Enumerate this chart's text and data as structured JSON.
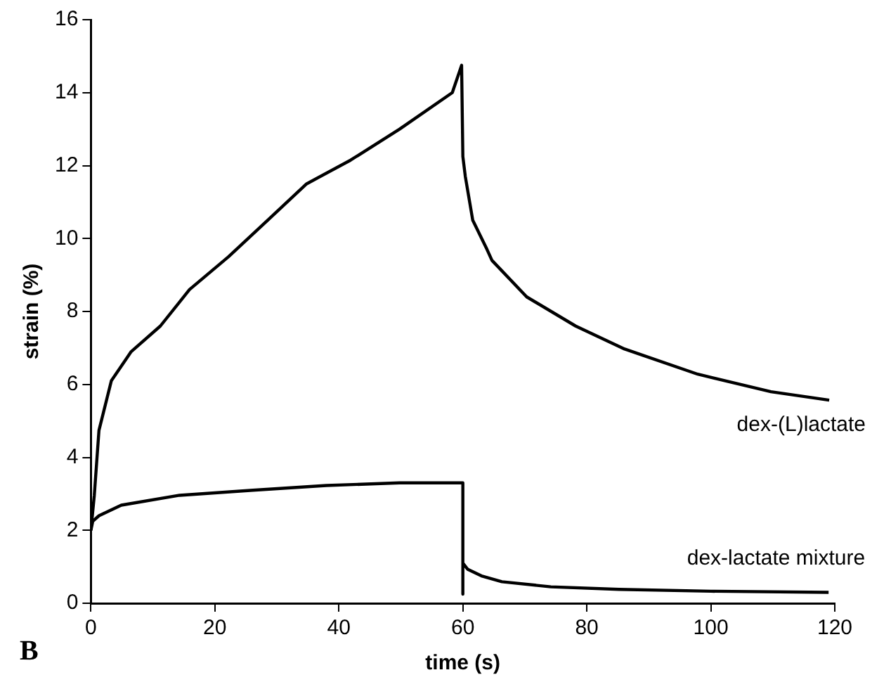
{
  "chart_data": {
    "type": "line",
    "xlabel": "time (s)",
    "ylabel": "strain (%)",
    "annotations": [
      "B"
    ],
    "xlim": [
      0,
      120
    ],
    "xticks": [
      0,
      20,
      40,
      60,
      80,
      100,
      120
    ],
    "ylim": [
      0,
      16
    ],
    "yticks": [
      0,
      2,
      4,
      6,
      8,
      10,
      12,
      14,
      16
    ],
    "grid": false,
    "legend": false,
    "marker": "none",
    "line_style": "solid",
    "series": [
      {
        "name": "dex-(L)lactate",
        "color": "#000000",
        "x": [
          0,
          0.55,
          1.3,
          3.3,
          6.5,
          11.2,
          15.9,
          22.2,
          28.5,
          34.8,
          41.9,
          49.8,
          58.3,
          59.8,
          60,
          60.4,
          61.6,
          63.9,
          64.7,
          70.3,
          78.2,
          86.1,
          97.9,
          109.7,
          119.1
        ],
        "values": [
          2,
          2.96,
          4.74,
          6.1,
          6.9,
          7.6,
          8.6,
          9.5,
          10.5,
          11.5,
          12.15,
          13,
          14,
          14.75,
          12.25,
          11.7,
          10.5,
          9.7,
          9.4,
          8.4,
          7.6,
          6.97,
          6.28,
          5.8,
          5.57
        ]
      },
      {
        "name": "dex-lactate mixture",
        "color": "#000000",
        "x": [
          0,
          0.3,
          1.3,
          4.9,
          14.3,
          26.1,
          38,
          49.8,
          60,
          60,
          60,
          60.8,
          63,
          66.3,
          74.2,
          85.2,
          100,
          119
        ],
        "values": [
          2,
          2.25,
          2.4,
          2.69,
          2.96,
          3.1,
          3.23,
          3.3,
          3.3,
          0.25,
          1.1,
          0.93,
          0.75,
          0.59,
          0.45,
          0.38,
          0.33,
          0.3
        ]
      }
    ]
  }
}
